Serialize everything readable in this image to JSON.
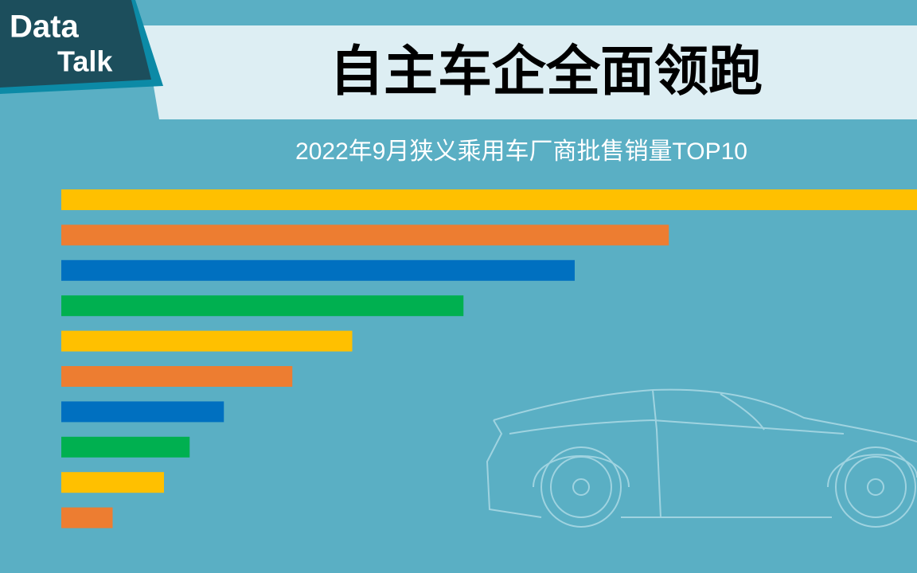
{
  "chart_data": {
    "type": "barh",
    "logo": [
      "Data",
      "Talk"
    ],
    "title": "自主车企全面领跑",
    "subtitle": "2022年9月狭义乘用车厂商批售销量TOP10",
    "categories": [
      null,
      null,
      null,
      null,
      null,
      null,
      null,
      null,
      null,
      null
    ],
    "values": [
      100,
      71,
      60,
      47,
      34,
      27,
      19,
      15,
      12,
      6
    ],
    "colors": [
      "#ffc000",
      "#ed7d31",
      "#0070c0",
      "#00b050",
      "#ffc000",
      "#ed7d31",
      "#0070c0",
      "#00b050",
      "#ffc000",
      "#ed7d31"
    ],
    "xlim": [
      0,
      100
    ]
  }
}
